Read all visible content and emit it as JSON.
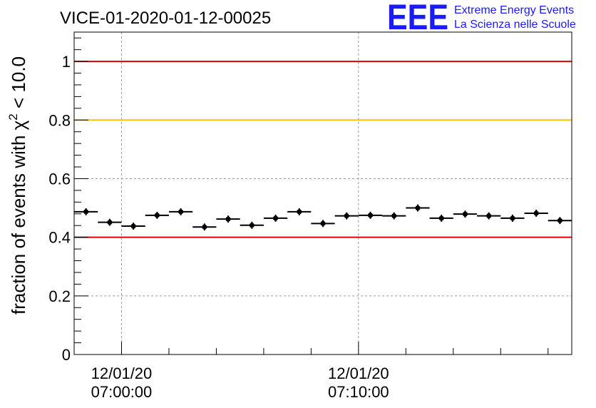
{
  "header": {
    "run_title": "VICE-01-2020-01-12-00025",
    "logo_letters": "EEE",
    "logo_line1": "Extreme Energy Events",
    "logo_line2": "La Scienza nelle Scuole"
  },
  "colors": {
    "reference_red": "#e00000",
    "reference_yellow": "#ffc400",
    "markers": "#000000",
    "logo_blue": "#1a1aff",
    "grid": "#9a9a9a"
  },
  "chart_data": {
    "type": "scatter",
    "title": "VICE-01-2020-01-12-00025",
    "ylabel_prefix": "fraction of events with ",
    "ylabel_symbol": "χ",
    "ylabel_sup": "2",
    "ylabel_suffix": " < 10.0",
    "xlabel": "",
    "ylim": [
      0,
      1.1
    ],
    "yticks": [
      0,
      0.2,
      0.4,
      0.6,
      0.8,
      1
    ],
    "ytick_labels": [
      "0",
      "0.2",
      "0.4",
      "0.6",
      "0.8",
      "1"
    ],
    "xlim_minutes": [
      -2.0,
      19.0
    ],
    "x_tick_labels": [
      {
        "minute": 0,
        "date": "12/01/20",
        "time": "07:00:00"
      },
      {
        "minute": 10,
        "date": "12/01/20",
        "time": "07:10:00"
      }
    ],
    "x_minor_ticks_minutes": [
      2,
      4,
      6,
      8,
      12,
      14,
      16,
      18
    ],
    "grid": true,
    "reference_lines": [
      {
        "y": 1.0,
        "color": "#e00000"
      },
      {
        "y": 0.8,
        "color": "#ffc400"
      },
      {
        "y": 0.4,
        "color": "#e00000"
      }
    ],
    "bin_width_minutes": 1.0,
    "series": [
      {
        "x_minutes": [
          -1.5,
          -0.5,
          0.5,
          1.5,
          2.5,
          3.5,
          4.5,
          5.5,
          6.5,
          7.5,
          8.5,
          9.5,
          10.5,
          11.5,
          12.5,
          13.5,
          14.5,
          15.5,
          16.5,
          17.5,
          18.5
        ],
        "values": [
          0.487,
          0.451,
          0.438,
          0.475,
          0.487,
          0.435,
          0.462,
          0.441,
          0.465,
          0.487,
          0.447,
          0.473,
          0.475,
          0.473,
          0.5,
          0.465,
          0.479,
          0.473,
          0.465,
          0.482,
          0.457
        ],
        "errors": [
          0.012,
          0.012,
          0.012,
          0.012,
          0.012,
          0.012,
          0.012,
          0.012,
          0.012,
          0.012,
          0.012,
          0.012,
          0.012,
          0.012,
          0.012,
          0.012,
          0.012,
          0.012,
          0.012,
          0.012,
          0.012
        ]
      }
    ]
  }
}
